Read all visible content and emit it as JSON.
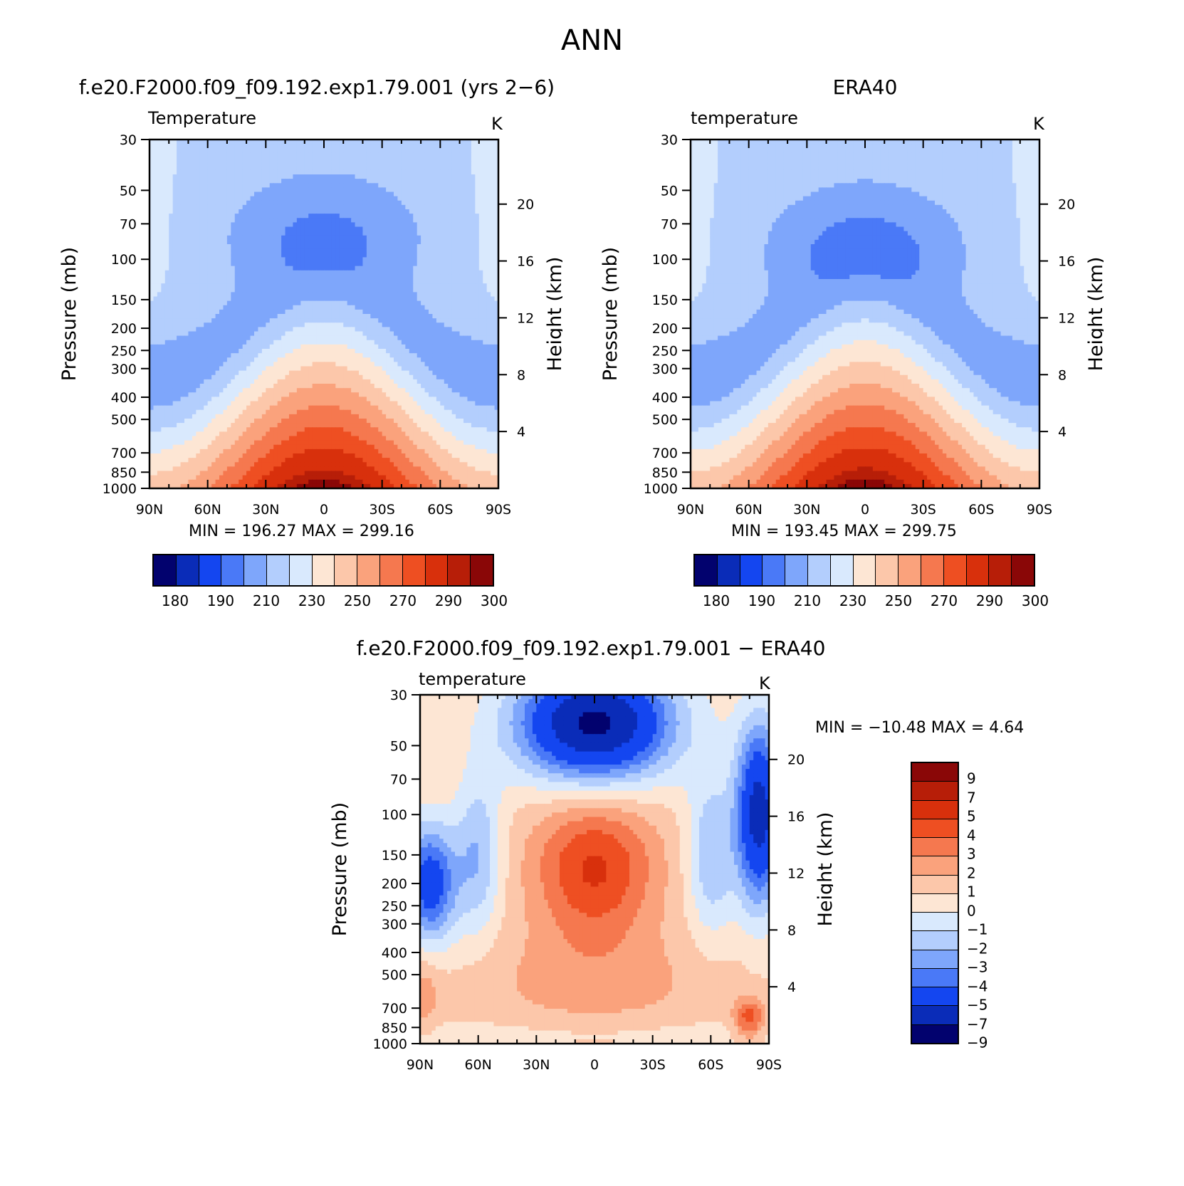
{
  "figure_title": "ANN",
  "colors": {
    "model": [
      "#02026e",
      "#0a2cb8",
      "#1446f0",
      "#4a79f7",
      "#7ea6fb",
      "#b3cefd",
      "#d9e9fd",
      "#fde6d4",
      "#fcc7aa",
      "#faa27c",
      "#f5784f",
      "#ee4f22",
      "#d8300c",
      "#b71e08",
      "#8a0707"
    ],
    "diff": [
      "#02026e",
      "#0a2cb8",
      "#1446f0",
      "#4a79f7",
      "#7ea6fb",
      "#b3cefd",
      "#d9e9fd",
      "#fde6d4",
      "#fcc7aa",
      "#faa27c",
      "#f5784f",
      "#ee4f22",
      "#d8300c",
      "#b71e08",
      "#8a0707"
    ]
  },
  "panels": {
    "model": {
      "title": "f.e20.F2000.f09_f09.192.exp1.79.001 (yrs 2−6)",
      "variable": "Temperature",
      "units": "K",
      "min_max": "MIN = 196.27   MAX = 299.16"
    },
    "obs": {
      "title": "ERA40",
      "variable": "temperature",
      "units": "K",
      "min_max": "MIN = 193.45   MAX = 299.75"
    },
    "diff": {
      "title": "f.e20.F2000.f09_f09.192.exp1.79.001 − ERA40",
      "variable": "temperature",
      "units": "K",
      "min_max": "MIN = −10.48   MAX =    4.64"
    }
  },
  "colorbar_model": {
    "ticks": [
      "180",
      "190",
      "210",
      "230",
      "250",
      "270",
      "290",
      "300"
    ]
  },
  "colorbar_diff": {
    "ticks": [
      "9",
      "7",
      "5",
      "4",
      "3",
      "2",
      "1",
      "0",
      "−1",
      "−2",
      "−3",
      "−4",
      "−5",
      "−7",
      "−9"
    ]
  },
  "chart_data": [
    {
      "type": "heatmap",
      "title": "f.e20.F2000.f09_f09.192.exp1.79.001 (yrs 2−6)",
      "subtitle": "Temperature",
      "units": "K",
      "xlabel": "",
      "ylabel": "Pressure (mb)",
      "ylabel_right": "Height (km)",
      "x_ticks": [
        "90N",
        "60N",
        "30N",
        "0",
        "30S",
        "60S",
        "90S"
      ],
      "y_ticks": [
        "30",
        "50",
        "70",
        "100",
        "150",
        "200",
        "250",
        "300",
        "400",
        "500",
        "700",
        "850",
        "1000"
      ],
      "y_ticks_right": [
        "20",
        "16",
        "12",
        "8",
        "4"
      ],
      "contour_levels": [
        180,
        185,
        190,
        200,
        210,
        220,
        230,
        240,
        250,
        260,
        270,
        280,
        290,
        295,
        300
      ],
      "min": 196.27,
      "max": 299.16,
      "profile": {
        "cold_core_pressure": 80,
        "cold_core_value": 199,
        "surface_equator": 299
      }
    },
    {
      "type": "heatmap",
      "title": "ERA40",
      "subtitle": "temperature",
      "units": "K",
      "ylabel": "Pressure (mb)",
      "ylabel_right": "Height (km)",
      "x_ticks": [
        "90N",
        "60N",
        "30N",
        "0",
        "30S",
        "60S",
        "90S"
      ],
      "y_ticks": [
        "30",
        "50",
        "70",
        "100",
        "150",
        "200",
        "250",
        "300",
        "400",
        "500",
        "700",
        "850",
        "1000"
      ],
      "y_ticks_right": [
        "20",
        "16",
        "12",
        "8",
        "4"
      ],
      "contour_levels": [
        180,
        185,
        190,
        200,
        210,
        220,
        230,
        240,
        250,
        260,
        270,
        280,
        290,
        295,
        300
      ],
      "min": 193.45,
      "max": 299.75,
      "profile": {
        "cold_core_pressure": 90,
        "cold_core_value": 197,
        "surface_equator": 299.5
      }
    },
    {
      "type": "heatmap",
      "title": "f.e20.F2000.f09_f09.192.exp1.79.001 − ERA40",
      "subtitle": "temperature",
      "units": "K",
      "ylabel": "Pressure (mb)",
      "ylabel_right": "Height (km)",
      "x_ticks": [
        "90N",
        "60N",
        "30N",
        "0",
        "30S",
        "60S",
        "90S"
      ],
      "y_ticks": [
        "30",
        "50",
        "70",
        "100",
        "150",
        "200",
        "250",
        "300",
        "400",
        "500",
        "700",
        "850",
        "1000"
      ],
      "y_ticks_right": [
        "20",
        "16",
        "12",
        "8",
        "4"
      ],
      "contour_levels": [
        -9,
        -7,
        -5,
        -4,
        -3,
        -2,
        -1,
        0,
        1,
        2,
        3,
        4,
        5,
        7,
        9
      ],
      "min": -10.48,
      "max": 4.64
    }
  ]
}
